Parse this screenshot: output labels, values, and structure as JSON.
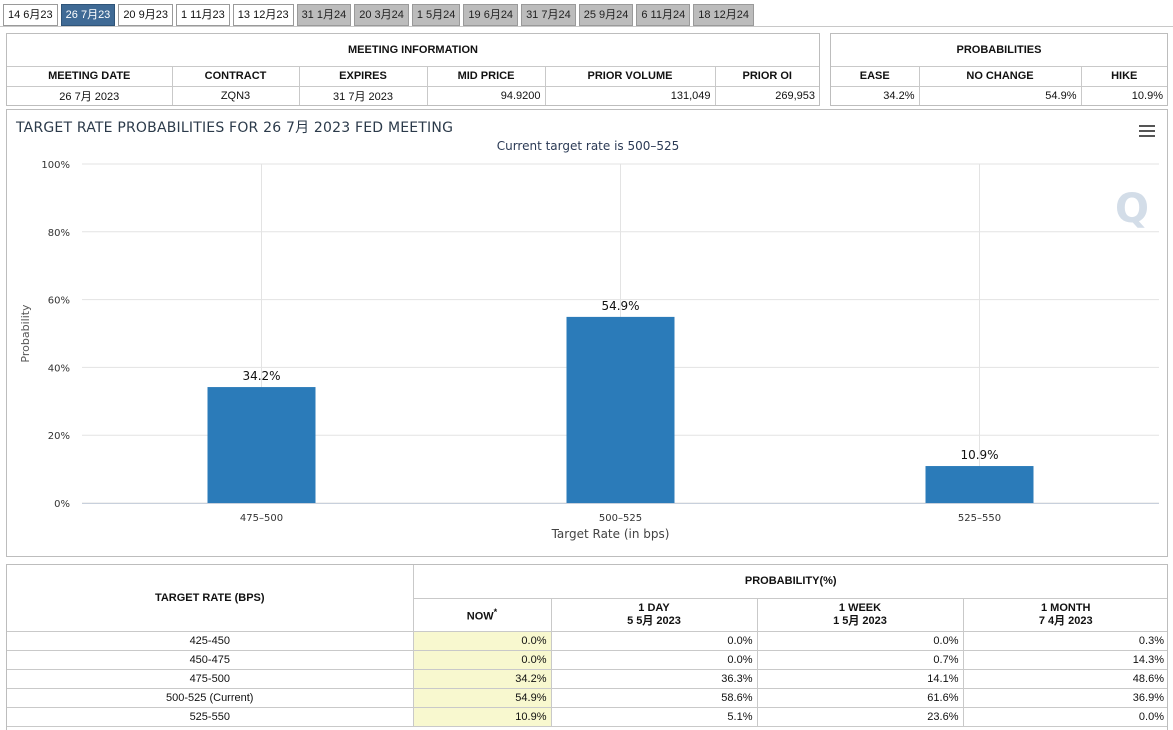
{
  "tabs": [
    {
      "label": "14 6月23",
      "state": "normal"
    },
    {
      "label": "26 7月23",
      "state": "active"
    },
    {
      "label": "20 9月23",
      "state": "normal"
    },
    {
      "label": "1 11月23",
      "state": "normal"
    },
    {
      "label": "13 12月23",
      "state": "normal"
    },
    {
      "label": "31 1月24",
      "state": "future"
    },
    {
      "label": "20 3月24",
      "state": "future"
    },
    {
      "label": "1 5月24",
      "state": "future"
    },
    {
      "label": "19 6月24",
      "state": "future"
    },
    {
      "label": "31 7月24",
      "state": "future"
    },
    {
      "label": "25 9月24",
      "state": "future"
    },
    {
      "label": "6 11月24",
      "state": "future"
    },
    {
      "label": "18 12月24",
      "state": "future"
    }
  ],
  "meeting_info": {
    "title": "MEETING INFORMATION",
    "headers": [
      "MEETING DATE",
      "CONTRACT",
      "EXPIRES",
      "MID PRICE",
      "PRIOR VOLUME",
      "PRIOR OI"
    ],
    "values": [
      "26 7月 2023",
      "ZQN3",
      "31 7月 2023",
      "94.9200",
      "131,049",
      "269,953"
    ]
  },
  "probabilities": {
    "title": "PROBABILITIES",
    "headers": [
      "EASE",
      "NO CHANGE",
      "HIKE"
    ],
    "values": [
      "34.2%",
      "54.9%",
      "10.9%"
    ]
  },
  "chart_data": {
    "type": "bar",
    "title": "TARGET RATE PROBABILITIES FOR 26 7月 2023 FED MEETING",
    "subtitle": "Current target rate is 500–525",
    "xlabel": "Target Rate (in bps)",
    "ylabel": "Probability",
    "categories": [
      "475–500",
      "500–525",
      "525–550"
    ],
    "values": [
      34.2,
      54.9,
      10.9
    ],
    "data_labels": [
      "34.2%",
      "54.9%",
      "10.9%"
    ],
    "ylim": [
      0,
      100
    ],
    "yticks": [
      0,
      20,
      40,
      60,
      80,
      100
    ],
    "ytick_labels": [
      "0%",
      "20%",
      "40%",
      "60%",
      "80%",
      "100%"
    ],
    "grid": true,
    "bar_color": "#2b7bb9",
    "watermark": "Q"
  },
  "prob_table": {
    "col_target": "TARGET RATE (BPS)",
    "col_prob": "PROBABILITY(%)",
    "sub_headers": [
      {
        "line1": "NOW",
        "sup": "*",
        "line2": ""
      },
      {
        "line1": "1 DAY",
        "line2": "5 5月 2023"
      },
      {
        "line1": "1 WEEK",
        "line2": "1 5月 2023"
      },
      {
        "line1": "1 MONTH",
        "line2": "7 4月 2023"
      }
    ],
    "rows": [
      {
        "rate": "425-450",
        "now": "0.0%",
        "day": "0.0%",
        "week": "0.0%",
        "month": "0.3%"
      },
      {
        "rate": "450-475",
        "now": "0.0%",
        "day": "0.0%",
        "week": "0.7%",
        "month": "14.3%"
      },
      {
        "rate": "475-500",
        "now": "34.2%",
        "day": "36.3%",
        "week": "14.1%",
        "month": "48.6%"
      },
      {
        "rate": "500-525 (Current)",
        "now": "54.9%",
        "day": "58.6%",
        "week": "61.6%",
        "month": "36.9%"
      },
      {
        "rate": "525-550",
        "now": "10.9%",
        "day": "5.1%",
        "week": "23.6%",
        "month": "0.0%"
      }
    ]
  }
}
